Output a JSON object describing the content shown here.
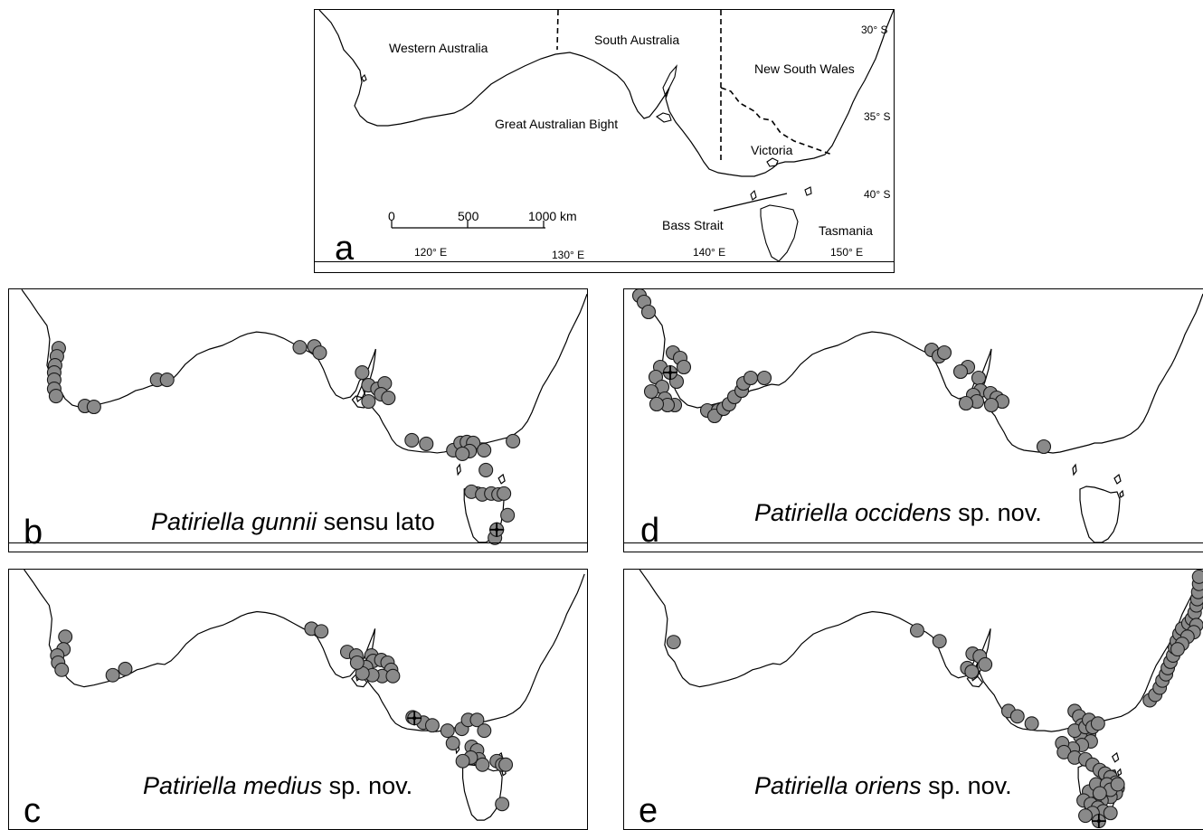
{
  "figure": {
    "overview": {
      "letter": "a",
      "regions": {
        "western_australia": "Western Australia",
        "south_australia": "South Australia",
        "new_south_wales": "New South Wales",
        "great_australian_bight": "Great Australian Bight",
        "victoria": "Victoria",
        "bass_strait": "Bass Strait",
        "tasmania": "Tasmania"
      },
      "latitudes": [
        "30° S",
        "35° S",
        "40° S"
      ],
      "longitudes": [
        "120° E",
        "130° E",
        "140° E",
        "150° E"
      ],
      "scale_bar": {
        "ticks": [
          "0",
          "500",
          "1000 km"
        ]
      }
    },
    "panels": [
      {
        "id": "b",
        "letter": "b",
        "title_genus": "Patiriella",
        "title_species": "gunnii",
        "title_suffix": " sensu lato"
      },
      {
        "id": "d",
        "letter": "d",
        "title_genus": "Patiriella",
        "title_species": "occidens",
        "title_suffix": " sp. nov."
      },
      {
        "id": "c",
        "letter": "c",
        "title_genus": "Patiriella",
        "title_species": "medius",
        "title_suffix": " sp. nov."
      },
      {
        "id": "e",
        "letter": "e",
        "title_genus": "Patiriella",
        "title_species": "oriens",
        "title_suffix": " sp. nov."
      }
    ],
    "marker_style": {
      "fill": "#8a8a8a",
      "stroke": "#1a1a1a",
      "coastline": "#000000"
    }
  }
}
